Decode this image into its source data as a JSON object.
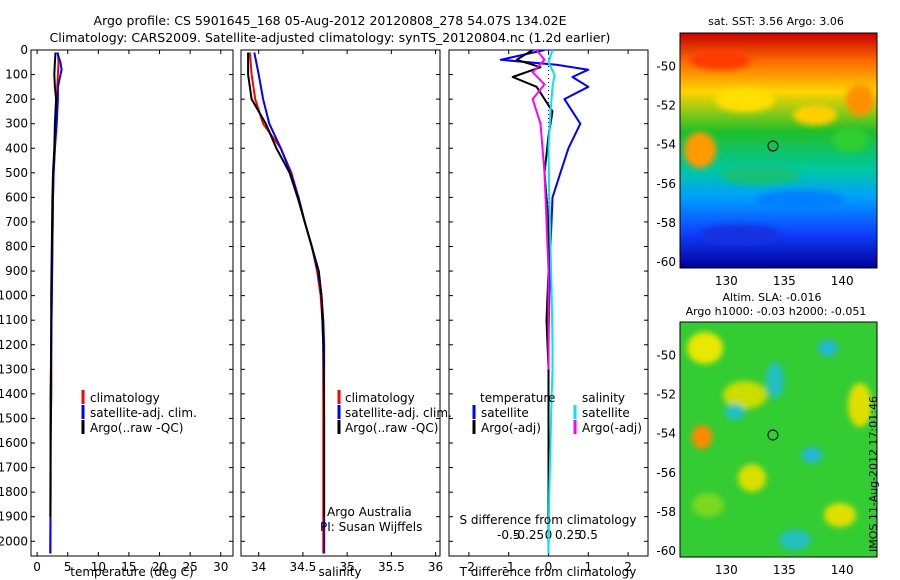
{
  "title_line1": "Argo profile: CS 5901645_168 05-Aug-2012 20120808_278 54.07S 134.02E",
  "title_line2": "Climatology: CARS2009. Satellite-adjusted climatology: synTS_20120804.nc (1.2d earlier)",
  "stamp": "IMOS 11-Aug-2012 17:01:46",
  "colors": {
    "climatology": "#ff0000",
    "satellite": "#0000ff",
    "argo": "#000000",
    "satellite_diff_s": "#00e5ee",
    "argo_diff_s": "#ff00ff"
  },
  "chart_data": [
    {
      "type": "line",
      "id": "temperature",
      "xlabel": "temperature (deg C)",
      "ylabel": "",
      "xlim": [
        -1,
        32
      ],
      "ylim": [
        2060,
        0
      ],
      "xticks": [
        0,
        5,
        10,
        15,
        20,
        25,
        30
      ],
      "yticks": [
        0,
        100,
        200,
        300,
        400,
        500,
        600,
        700,
        800,
        900,
        1000,
        1100,
        1200,
        1300,
        1400,
        1500,
        1600,
        1700,
        1800,
        1900,
        2000
      ],
      "legend": {
        "placement": "lower-middle",
        "entries": [
          "climatology",
          "satellite-adj. clim.",
          "Argo(..raw -QC)"
        ]
      },
      "series": [
        {
          "name": "climatology",
          "color": "#ff0000",
          "x": [
            3.4,
            3.5,
            3.4,
            3.3,
            3.3,
            3.1,
            2.9,
            2.7,
            2.6,
            2.5,
            2.4,
            2.3,
            2.3,
            2.2,
            2.2,
            2.15
          ],
          "y": [
            10,
            50,
            100,
            150,
            200,
            300,
            400,
            500,
            600,
            800,
            1000,
            1200,
            1400,
            1600,
            1800,
            2050
          ]
        },
        {
          "name": "satellite-adj. clim.",
          "color": "#0000ff",
          "x": [
            3.3,
            3.8,
            4.0,
            3.4,
            3.4,
            3.2,
            2.9,
            2.7,
            2.6,
            2.5,
            2.4,
            2.3,
            2.3,
            2.2,
            2.2,
            2.15
          ],
          "y": [
            10,
            50,
            80,
            150,
            200,
            300,
            400,
            500,
            600,
            800,
            1000,
            1200,
            1400,
            1600,
            1800,
            2050
          ]
        },
        {
          "name": "Argo(..raw -QC)",
          "color": "#000000",
          "x": [
            3.0,
            2.9,
            2.8,
            2.9,
            3.1,
            2.9,
            2.8,
            2.6,
            2.5,
            2.4,
            2.3,
            2.3,
            2.2,
            2.2,
            2.15
          ],
          "y": [
            10,
            50,
            100,
            150,
            200,
            300,
            400,
            500,
            600,
            800,
            1000,
            1200,
            1400,
            1600,
            1900
          ]
        }
      ]
    },
    {
      "type": "line",
      "id": "salinity",
      "xlabel": "salinity",
      "ylabel": "",
      "xlim": [
        33.8,
        36.05
      ],
      "ylim": [
        2060,
        0
      ],
      "xticks": [
        34,
        34.5,
        35,
        35.5,
        36
      ],
      "legend": {
        "placement": "lower-middle",
        "entries": [
          "climatology",
          "satellite-adj. clim.",
          "Argo(..raw -QC)"
        ]
      },
      "annotations": [
        "Argo Australia",
        "PI: Susan Wijffels"
      ],
      "series": [
        {
          "name": "climatology",
          "color": "#ff0000",
          "x": [
            33.9,
            33.92,
            33.96,
            34.05,
            34.25,
            34.37,
            34.45,
            34.52,
            34.6,
            34.66,
            34.7,
            34.72,
            34.73,
            34.73,
            34.73,
            34.73
          ],
          "y": [
            10,
            100,
            200,
            300,
            400,
            500,
            600,
            700,
            800,
            900,
            1000,
            1100,
            1200,
            1400,
            1700,
            2050
          ]
        },
        {
          "name": "satellite-adj. clim.",
          "color": "#0000ff",
          "x": [
            33.95,
            34.0,
            34.05,
            34.12,
            34.25,
            34.36,
            34.45,
            34.52,
            34.6,
            34.67,
            34.71,
            34.73,
            34.74,
            34.74,
            34.74,
            34.74
          ],
          "y": [
            10,
            100,
            200,
            300,
            400,
            500,
            600,
            700,
            800,
            900,
            1000,
            1100,
            1200,
            1400,
            1700,
            2050
          ]
        },
        {
          "name": "Argo(..raw -QC)",
          "color": "#000000",
          "x": [
            33.88,
            33.88,
            33.92,
            34.0,
            34.08,
            34.2,
            34.35,
            34.44,
            34.52,
            34.6,
            34.68,
            34.71,
            34.73,
            34.74,
            34.74
          ],
          "y": [
            10,
            100,
            200,
            250,
            300,
            400,
            500,
            600,
            700,
            800,
            900,
            1000,
            1200,
            1500,
            1900
          ]
        }
      ]
    },
    {
      "type": "line",
      "id": "differences",
      "xlabel": "T difference from climatology",
      "xlabel_top": "S difference from climatology",
      "ylabel": "",
      "xlim": [
        -2.5,
        2.5
      ],
      "ylim": [
        2060,
        0
      ],
      "xticks": [
        -2,
        -1,
        0,
        1,
        2
      ],
      "xticks_s_labels": [
        "-0.5",
        "-0.25",
        "0",
        "0.25",
        "0.5"
      ],
      "legend": {
        "placement": "lower-middle",
        "temperature_heading": "temperature",
        "salinity_heading": "salinity",
        "entries": [
          "satellite",
          "Argo(-adj)",
          "satellite",
          "Argo(-adj)"
        ]
      },
      "series": [
        {
          "name": "temperature satellite",
          "color": "#0000ff",
          "x": [
            -0.1,
            -1.2,
            0.2,
            1.0,
            0.6,
            1.0,
            0.4,
            0.8,
            0.5,
            0.3,
            0.1,
            0.05,
            0.02,
            0.0,
            0.0,
            0.0
          ],
          "y": [
            0,
            40,
            60,
            80,
            110,
            150,
            200,
            300,
            400,
            500,
            600,
            800,
            1000,
            1200,
            1500,
            2050
          ]
        },
        {
          "name": "temperature Argo(-adj)",
          "color": "#000000",
          "x": [
            -0.4,
            -0.8,
            -0.2,
            -0.9,
            -0.3,
            0.1,
            0.0,
            -0.1,
            0.0,
            0.0,
            -0.05,
            0.0,
            0.0,
            0.0,
            0.0
          ],
          "y": [
            0,
            40,
            70,
            110,
            150,
            250,
            350,
            500,
            700,
            900,
            1100,
            1300,
            1500,
            1700,
            1900
          ]
        },
        {
          "name": "salinity satellite",
          "color": "#00e5ee",
          "x": [
            0.1,
            0.0,
            0.15,
            0.1,
            0.05,
            0.0,
            0.02,
            0.05,
            0.08,
            0.1,
            0.1,
            0.08,
            0.05,
            0.02,
            0.0
          ],
          "y": [
            0,
            50,
            100,
            150,
            250,
            400,
            600,
            800,
            1000,
            1200,
            1300,
            1400,
            1600,
            1800,
            2050
          ]
        },
        {
          "name": "salinity Argo(-adj)",
          "color": "#ff00ff",
          "x": [
            -0.3,
            -0.1,
            -0.4,
            -0.1,
            -0.4,
            -0.2,
            -0.1,
            -0.05,
            0.0,
            0.0,
            0.0
          ],
          "y": [
            0,
            40,
            90,
            140,
            200,
            300,
            500,
            700,
            900,
            1100,
            1300
          ]
        }
      ]
    },
    {
      "type": "heatmap",
      "id": "sst_map",
      "title": "sat. SST: 3.56 Argo: 3.06",
      "xlim": [
        126,
        143
      ],
      "ylim": [
        -60.3,
        -48.3
      ],
      "xticks": [
        130,
        135,
        140
      ],
      "yticks": [
        -50,
        -52,
        -54,
        -56,
        -58,
        -60
      ],
      "marker": {
        "x": 134.02,
        "y": -54.07
      }
    },
    {
      "type": "heatmap",
      "id": "sla_map",
      "title": "Altim. SLA: -0.016",
      "subtitle": "Argo h1000: -0.03 h2000: -0.051",
      "xlim": [
        126,
        143
      ],
      "ylim": [
        -60.3,
        -48.3
      ],
      "xticks": [
        130,
        135,
        140
      ],
      "yticks": [
        -50,
        -52,
        -54,
        -56,
        -58,
        -60
      ],
      "marker": {
        "x": 134.02,
        "y": -54.07
      }
    }
  ]
}
